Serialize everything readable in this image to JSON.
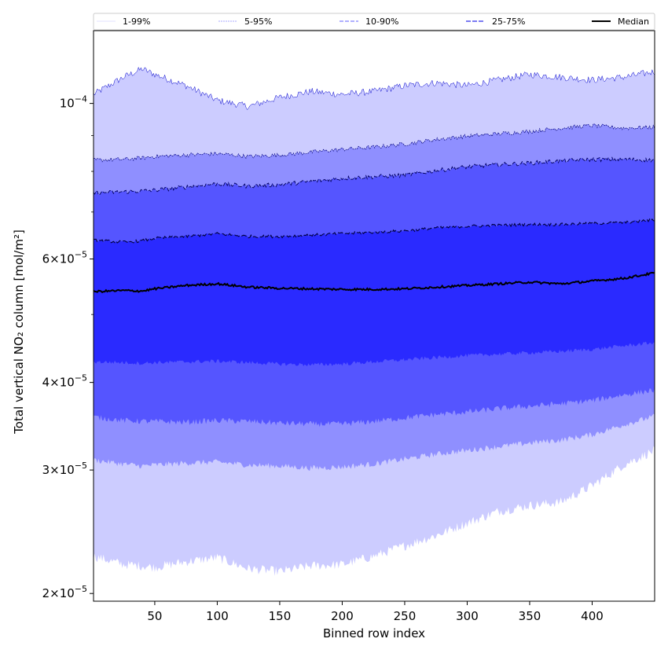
{
  "chart_data": {
    "type": "area",
    "title": "",
    "xlabel": "Binned row index",
    "ylabel": "Total vertical NO₂ column [mol/m²]",
    "yscale": "log",
    "xlim": [
      1,
      450
    ],
    "ylim": [
      1.95e-05,
      0.000127
    ],
    "grid": false,
    "legend_position": "top",
    "x_ticks": [
      50,
      100,
      150,
      200,
      250,
      300,
      350,
      400
    ],
    "y_ticks": [
      {
        "value": 2e-05,
        "mantissa": "2",
        "exponent": "−5"
      },
      {
        "value": 3e-05,
        "mantissa": "3",
        "exponent": "−5"
      },
      {
        "value": 4e-05,
        "mantissa": "4",
        "exponent": "−5"
      },
      {
        "value": 6e-05,
        "mantissa": "6",
        "exponent": "−5"
      },
      {
        "value": 0.0001,
        "mantissa": "",
        "exponent": "−4"
      }
    ],
    "x": [
      1,
      25,
      40,
      50,
      75,
      100,
      125,
      150,
      175,
      200,
      225,
      250,
      275,
      300,
      325,
      350,
      375,
      400,
      425,
      450
    ],
    "bands": [
      {
        "name": "1-99%",
        "color": "#ccccff",
        "line_color": "#0000cc",
        "lower": [
          2.26e-05,
          2.2e-05,
          2.19e-05,
          2.18e-05,
          2.22e-05,
          2.25e-05,
          2.17e-05,
          2.15e-05,
          2.19e-05,
          2.2e-05,
          2.26e-05,
          2.34e-05,
          2.42e-05,
          2.52e-05,
          2.62e-05,
          2.67e-05,
          2.7e-05,
          2.85e-05,
          3.05e-05,
          3.2e-05
        ],
        "upper": [
          0.000103,
          0.000109,
          0.000112,
          0.00011,
          0.000106,
          0.000101,
          9.9e-05,
          0.000102,
          0.000104,
          0.000103,
          0.000104,
          0.000106,
          0.000107,
          0.000106,
          0.000108,
          0.00011,
          0.000109,
          0.000108,
          0.000109,
          0.000111
        ]
      },
      {
        "name": "5-95%",
        "color": "#8f8fff",
        "line_color": "#000080",
        "lower": [
          3.1e-05,
          3.06e-05,
          3.04e-05,
          3.05e-05,
          3.07e-05,
          3.08e-05,
          3.05e-05,
          3.04e-05,
          3.02e-05,
          3.03e-05,
          3.06e-05,
          3.11e-05,
          3.16e-05,
          3.2e-05,
          3.24e-05,
          3.28e-05,
          3.31e-05,
          3.37e-05,
          3.48e-05,
          3.58e-05
        ],
        "upper": [
          8.3e-05,
          8.32e-05,
          8.36e-05,
          8.4e-05,
          8.44e-05,
          8.48e-05,
          8.4e-05,
          8.44e-05,
          8.52e-05,
          8.6e-05,
          8.66e-05,
          8.75e-05,
          8.88e-05,
          8.98e-05,
          9.05e-05,
          9.12e-05,
          9.22e-05,
          9.3e-05,
          9.22e-05,
          9.25e-05
        ]
      },
      {
        "name": "10-90%",
        "color": "#5555ff",
        "line_color": "#000060",
        "lower": [
          3.57e-05,
          3.53e-05,
          3.52e-05,
          3.52e-05,
          3.51e-05,
          3.53e-05,
          3.52e-05,
          3.5e-05,
          3.49e-05,
          3.49e-05,
          3.52e-05,
          3.56e-05,
          3.6e-05,
          3.63e-05,
          3.67e-05,
          3.7e-05,
          3.73e-05,
          3.77e-05,
          3.84e-05,
          3.9e-05
        ],
        "upper": [
          7.45e-05,
          7.48e-05,
          7.5e-05,
          7.52e-05,
          7.6e-05,
          7.68e-05,
          7.62e-05,
          7.66e-05,
          7.74e-05,
          7.82e-05,
          7.86e-05,
          7.9e-05,
          8.02e-05,
          8.12e-05,
          8.18e-05,
          8.22e-05,
          8.28e-05,
          8.32e-05,
          8.32e-05,
          8.3e-05
        ]
      },
      {
        "name": "25-75%",
        "color": "#2a2aff",
        "line_color": "#000040",
        "lower": [
          4.28e-05,
          4.27e-05,
          4.26e-05,
          4.27e-05,
          4.28e-05,
          4.29e-05,
          4.27e-05,
          4.25e-05,
          4.24e-05,
          4.25e-05,
          4.28e-05,
          4.31e-05,
          4.34e-05,
          4.37e-05,
          4.39e-05,
          4.41e-05,
          4.43e-05,
          4.46e-05,
          4.51e-05,
          4.56e-05
        ],
        "upper": [
          6.38e-05,
          6.34e-05,
          6.37e-05,
          6.42e-05,
          6.46e-05,
          6.52e-05,
          6.46e-05,
          6.46e-05,
          6.49e-05,
          6.52e-05,
          6.55e-05,
          6.58e-05,
          6.64e-05,
          6.68e-05,
          6.7e-05,
          6.72e-05,
          6.72e-05,
          6.74e-05,
          6.76e-05,
          6.82e-05
        ]
      }
    ],
    "series": [
      {
        "name": "Median",
        "color": "#000000",
        "values": [
          5.39e-05,
          5.41e-05,
          5.4e-05,
          5.44e-05,
          5.5e-05,
          5.53e-05,
          5.47e-05,
          5.45e-05,
          5.44e-05,
          5.43e-05,
          5.43e-05,
          5.44e-05,
          5.47e-05,
          5.5e-05,
          5.53e-05,
          5.56e-05,
          5.53e-05,
          5.58e-05,
          5.63e-05,
          5.73e-05
        ]
      }
    ],
    "legend": [
      "1-99%",
      "5-95%",
      "10-90%",
      "25-75%",
      "Median"
    ]
  }
}
